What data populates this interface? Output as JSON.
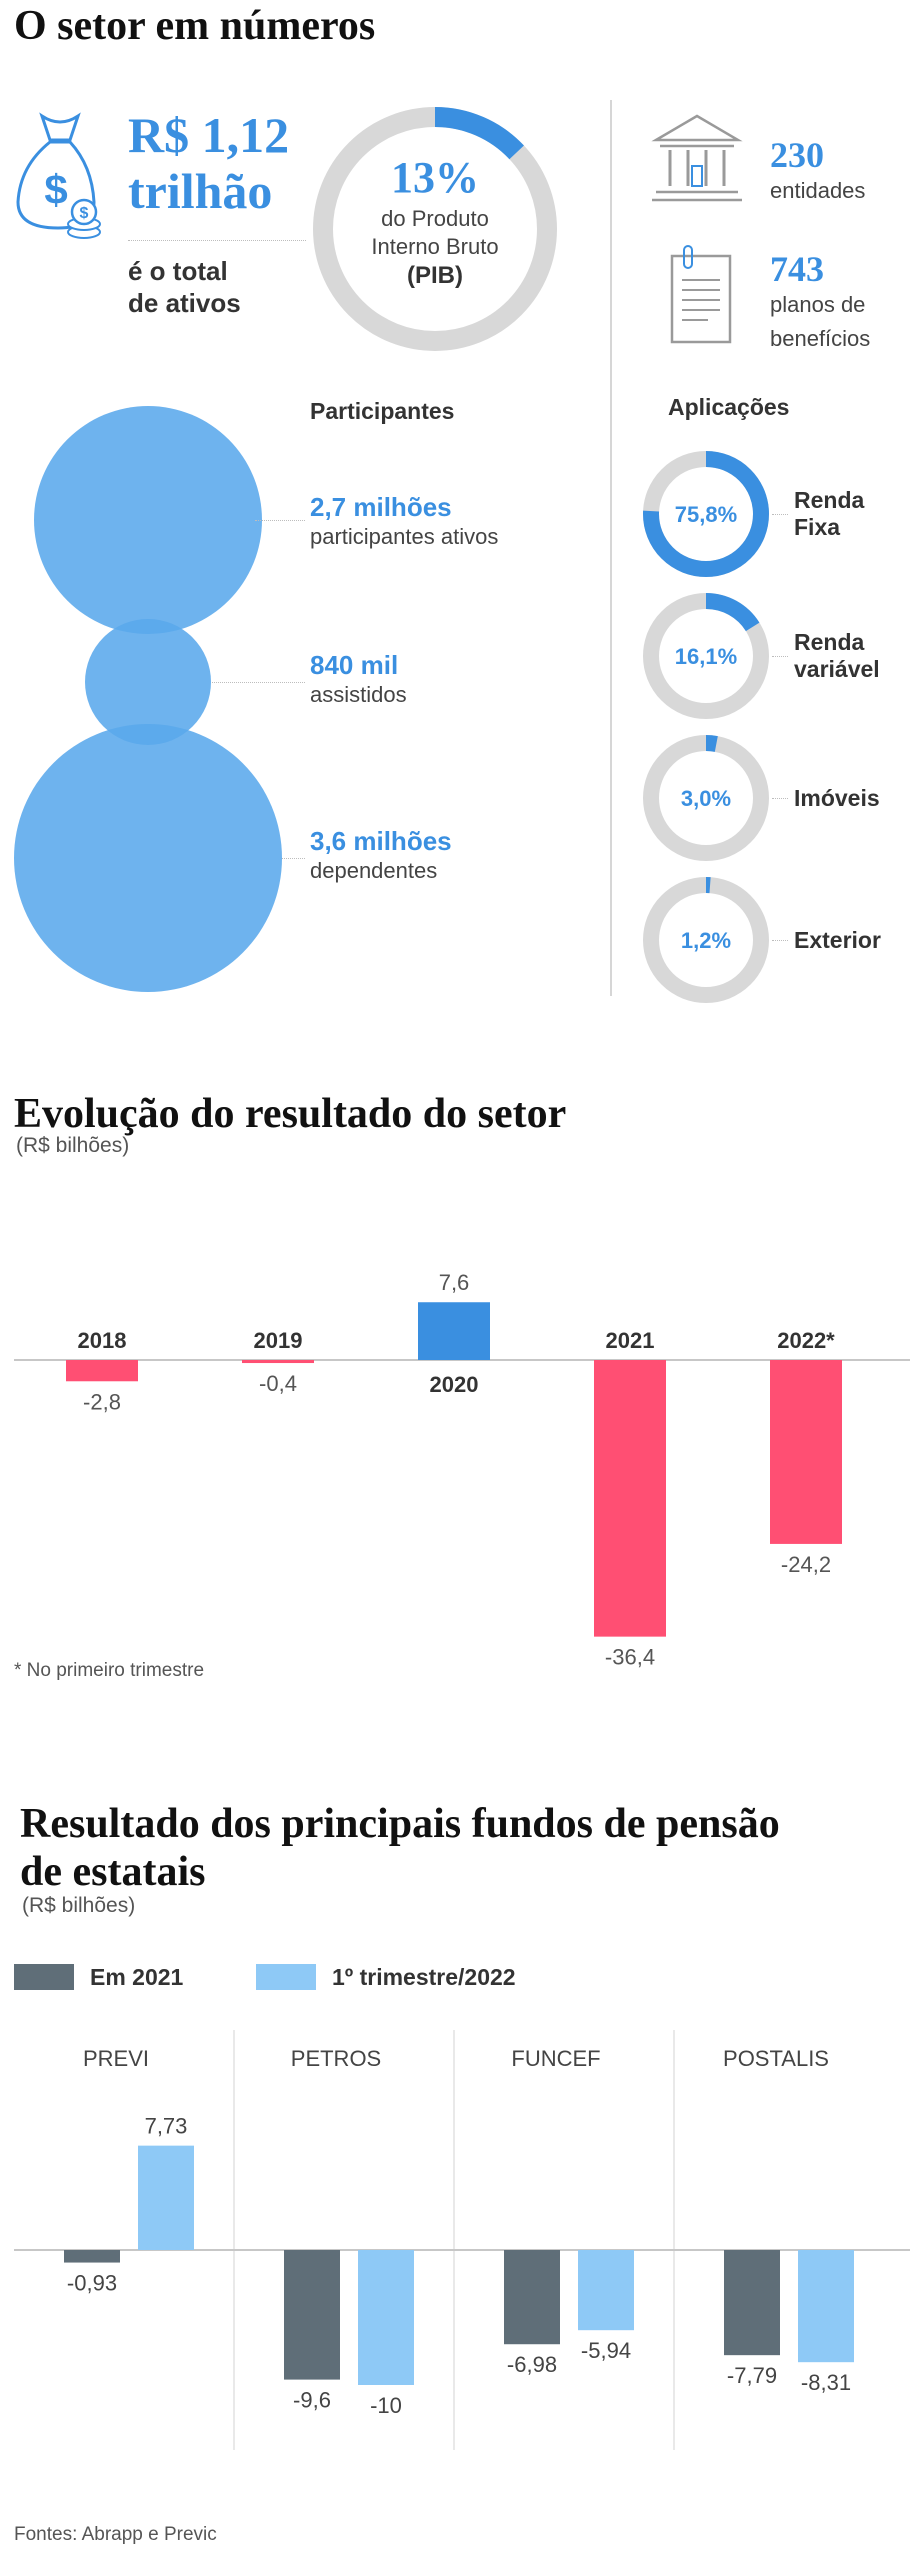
{
  "section1": {
    "title": "O setor em números",
    "assets": {
      "value_line1": "R$ 1,12",
      "value_line2": "trilhão",
      "desc_line1": "é o total",
      "desc_line2": "de ativos"
    },
    "gdp": {
      "percent": "13%",
      "fraction": 0.13,
      "line1": "do Produto",
      "line2": "Interno Bruto",
      "line3": "(PIB)"
    },
    "entities": {
      "value": "230",
      "label": "entidades"
    },
    "plans": {
      "value": "743",
      "label_line1": "planos de",
      "label_line2": "benefícios"
    },
    "participants": {
      "title": "Participantes",
      "items": [
        {
          "value": "2,7 milhões",
          "label": "participantes ativos"
        },
        {
          "value": "840 mil",
          "label": "assistidos"
        },
        {
          "value": "3,6 milhões",
          "label": "dependentes"
        }
      ]
    },
    "applications": {
      "title": "Aplicações",
      "items": [
        {
          "percent": "75,8%",
          "fraction": 0.758,
          "label_line1": "Renda",
          "label_line2": "Fixa"
        },
        {
          "percent": "16,1%",
          "fraction": 0.161,
          "label_line1": "Renda",
          "label_line2": "variável"
        },
        {
          "percent": "3,0%",
          "fraction": 0.03,
          "label_line1": "Imóveis",
          "label_line2": ""
        },
        {
          "percent": "1,2%",
          "fraction": 0.012,
          "label_line1": "Exterior",
          "label_line2": ""
        }
      ]
    }
  },
  "chart1_meta": {
    "title": "Evolução do resultado do setor",
    "unit": "(R$ bilhões)",
    "footnote": "* No primeiro trimestre"
  },
  "chart2_meta": {
    "title_line1": "Resultado dos principais fundos de pensão",
    "title_line2": "de estatais",
    "unit": "(R$ bilhões)",
    "legend": [
      "Em 2021",
      "1º trimestre/2022"
    ]
  },
  "chart_data": [
    {
      "type": "bar",
      "title": "Evolução do resultado do setor",
      "ylabel": "(R$ bilhões)",
      "categories": [
        "2018",
        "2019",
        "2020",
        "2021",
        "2022*"
      ],
      "values": [
        -2.8,
        -0.4,
        7.6,
        -36.4,
        -24.2
      ],
      "value_labels": [
        "-2,8",
        "-0,4",
        "7,6",
        "-36,4",
        "-24,2"
      ],
      "colors": {
        "positive": "#3a8fe0",
        "negative": "#ff4f73"
      },
      "grid": false
    },
    {
      "type": "bar",
      "title": "Resultado dos principais fundos de pensão de estatais",
      "ylabel": "(R$ bilhões)",
      "categories": [
        "PREVI",
        "PETROS",
        "FUNCEF",
        "POSTALIS"
      ],
      "series": [
        {
          "name": "Em 2021",
          "color": "#5f6e78",
          "values": [
            -0.93,
            -9.6,
            -6.98,
            -7.79
          ],
          "labels": [
            "-0,93",
            "-9,6",
            "-6,98",
            "-7,79"
          ]
        },
        {
          "name": "1º trimestre/2022",
          "color": "#8ec9f6",
          "values": [
            7.73,
            -10,
            -5.94,
            -8.31
          ],
          "labels": [
            "7,73",
            "-10",
            "-5,94",
            "-8,31"
          ]
        }
      ],
      "legend": "top-left",
      "grid": false
    }
  ],
  "source": "Fontes: Abrapp e Previc",
  "colors": {
    "accent": "#3a8fe0",
    "circle": "#5aa8ec",
    "ring_bg": "#d8d8d8",
    "negative": "#ff4f73"
  }
}
